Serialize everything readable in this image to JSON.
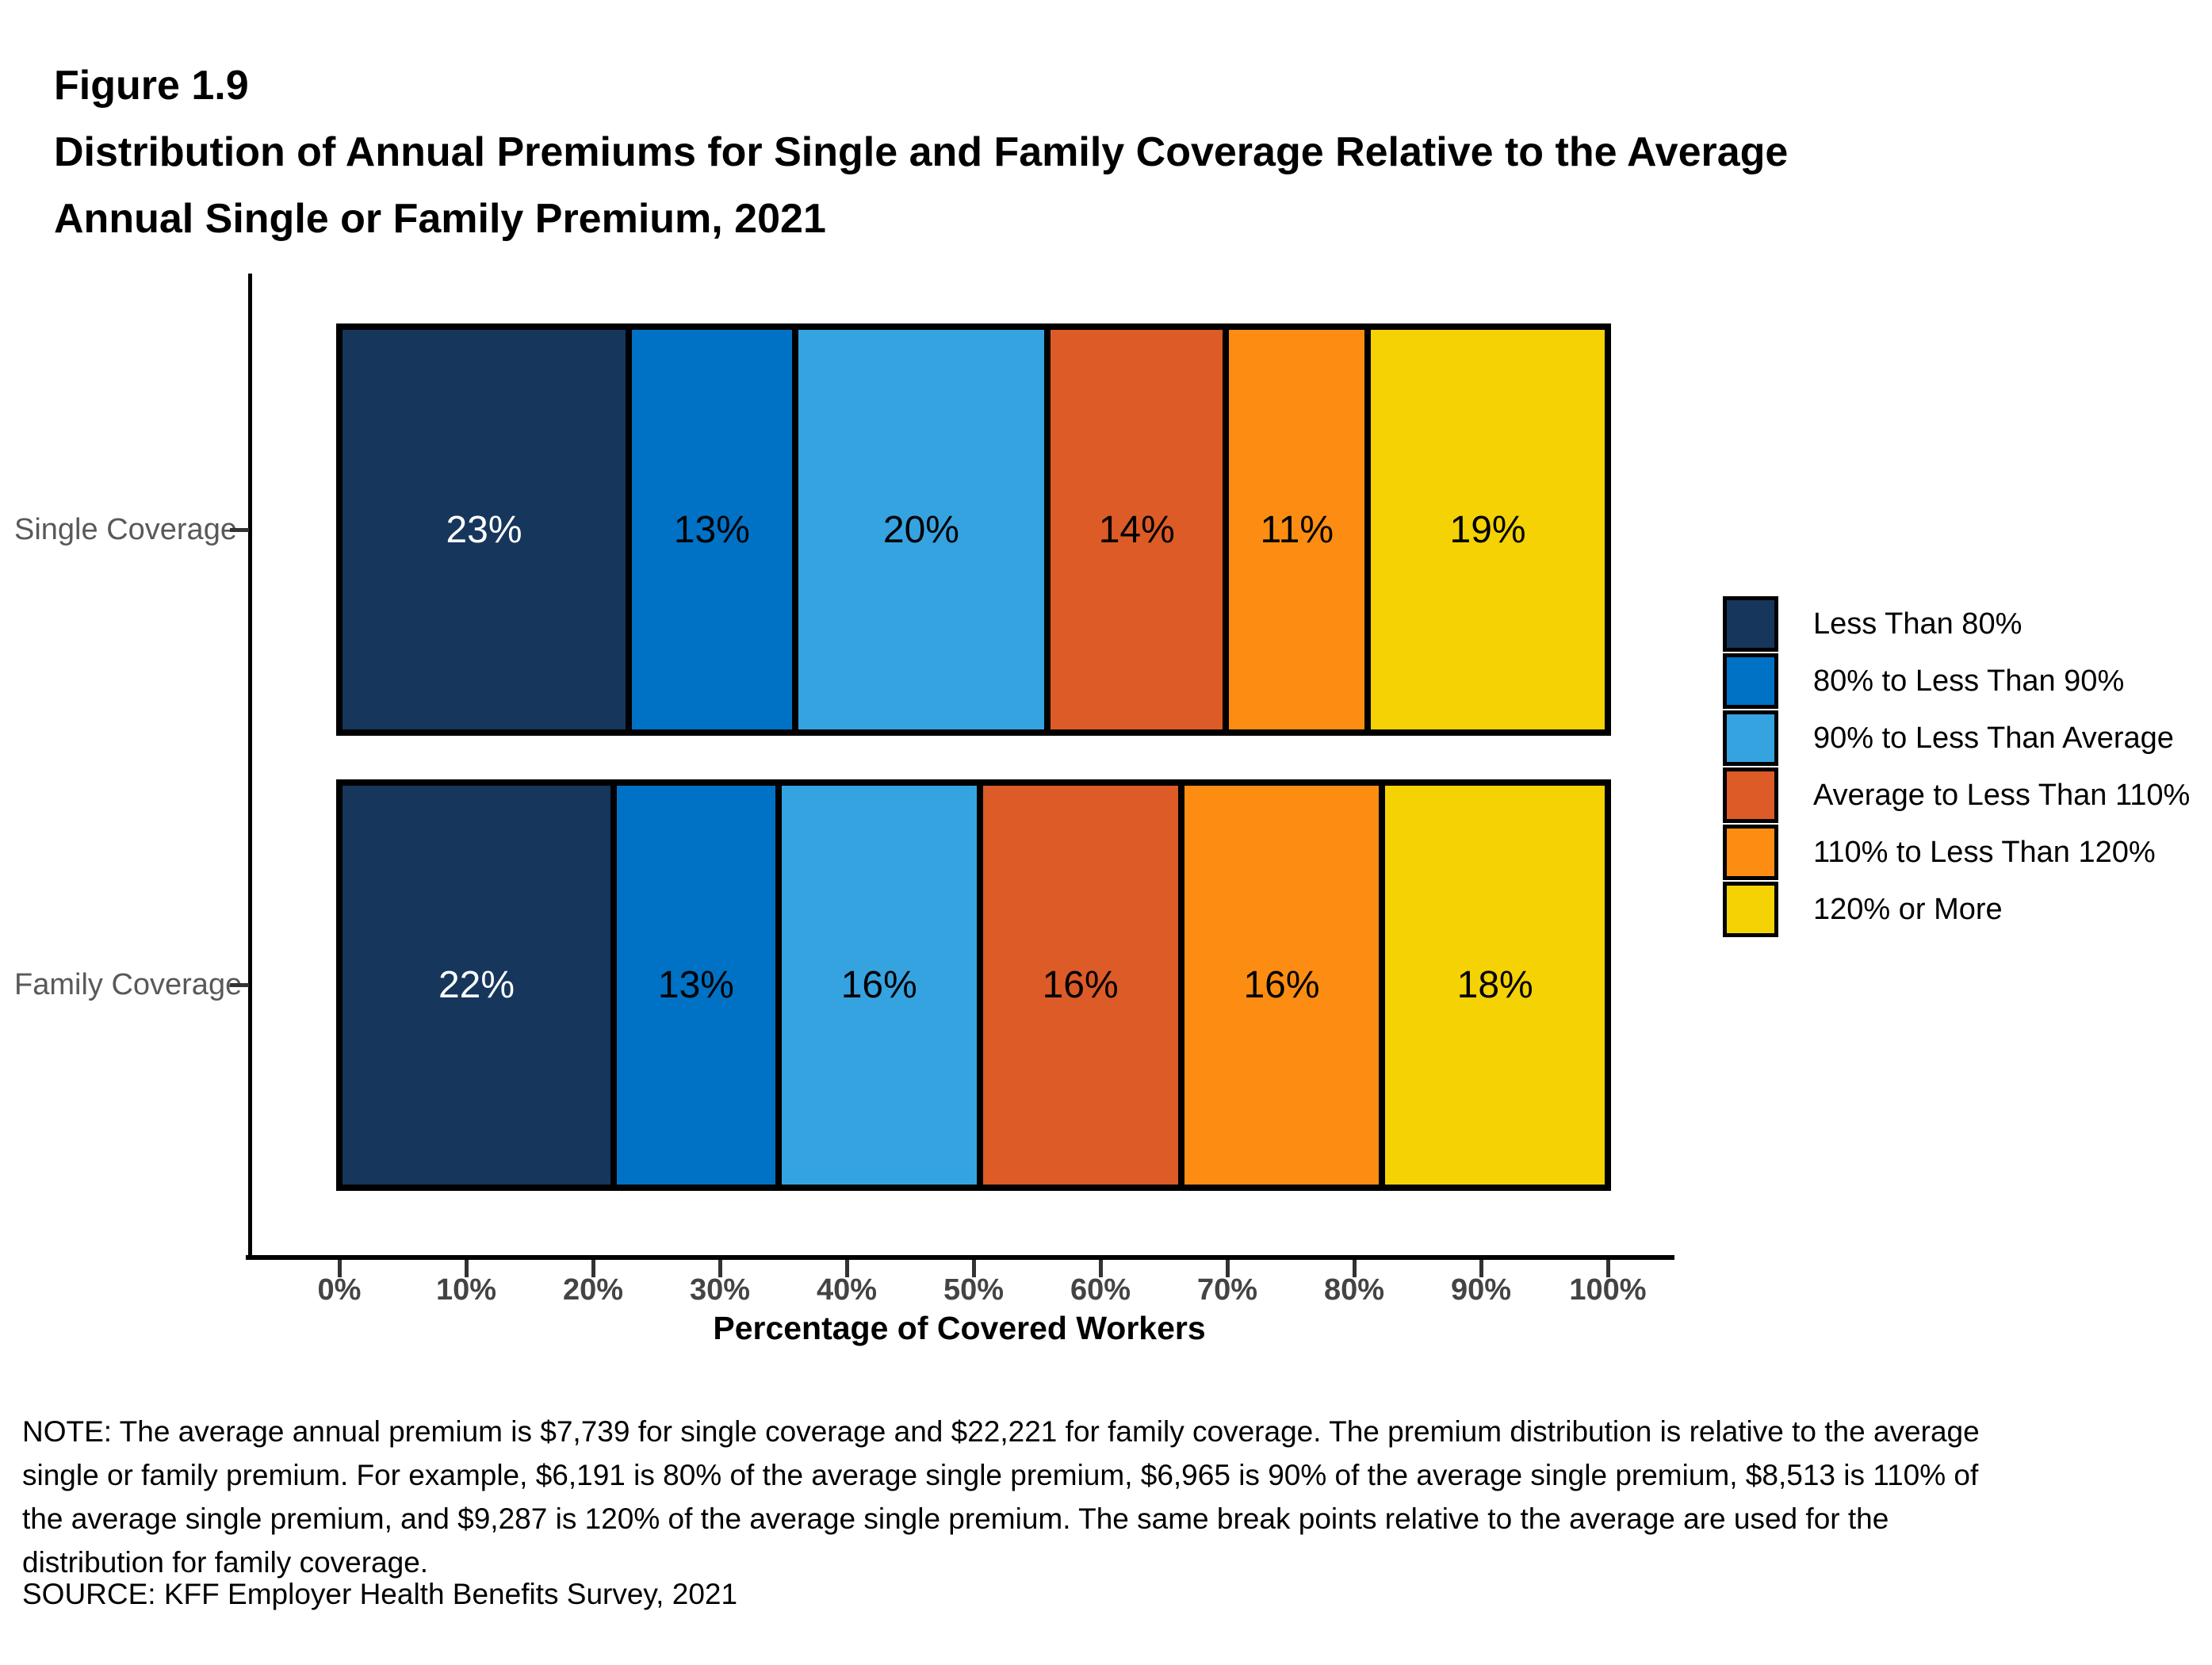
{
  "figure": {
    "label": "Figure 1.9",
    "title_line1": "Distribution of Annual Premiums for Single and Family Coverage Relative to the Average",
    "title_line2": "Annual Single or Family Premium, 2021"
  },
  "chart_data": {
    "type": "bar",
    "orientation": "horizontal",
    "stacked": true,
    "grid": false,
    "legend_position": "right",
    "categories": [
      "Single Coverage",
      "Family Coverage"
    ],
    "series": [
      {
        "name": "Less Than 80%",
        "color": "#16365C",
        "label_color": "#FFFFFF",
        "values": [
          23,
          22
        ]
      },
      {
        "name": "80% to Less Than 90%",
        "color": "#0072C6",
        "label_color": "#000000",
        "values": [
          13,
          13
        ]
      },
      {
        "name": "90% to Less Than Average",
        "color": "#36A3E1",
        "label_color": "#000000",
        "values": [
          20,
          16
        ]
      },
      {
        "name": "Average to Less Than 110%",
        "color": "#DC5B26",
        "label_color": "#000000",
        "values": [
          14,
          16
        ]
      },
      {
        "name": "110% to Less Than 120%",
        "color": "#FC8D12",
        "label_color": "#000000",
        "values": [
          11,
          16
        ]
      },
      {
        "name": "120% or More",
        "color": "#F4D203",
        "label_color": "#000000",
        "values": [
          19,
          18
        ]
      }
    ],
    "value_suffix": "%",
    "xlabel": "Percentage of Covered Workers",
    "xlim": [
      0,
      100
    ],
    "x_ticks": [
      "0%",
      "10%",
      "20%",
      "30%",
      "40%",
      "50%",
      "60%",
      "70%",
      "80%",
      "90%",
      "100%"
    ]
  },
  "note_lines": [
    "NOTE: The average annual premium is $7,739 for single coverage and $22,221 for family coverage. The premium distribution is relative to the average",
    "single or family premium. For example, $6,191 is 80% of the average single premium, $6,965 is 90% of the average single premium, $8,513 is 110% of",
    "the average single premium, and $9,287 is 120% of the average single premium. The same break points relative to the average are used for the",
    "distribution for family coverage."
  ],
  "source": "SOURCE: KFF Employer Health Benefits Survey, 2021"
}
